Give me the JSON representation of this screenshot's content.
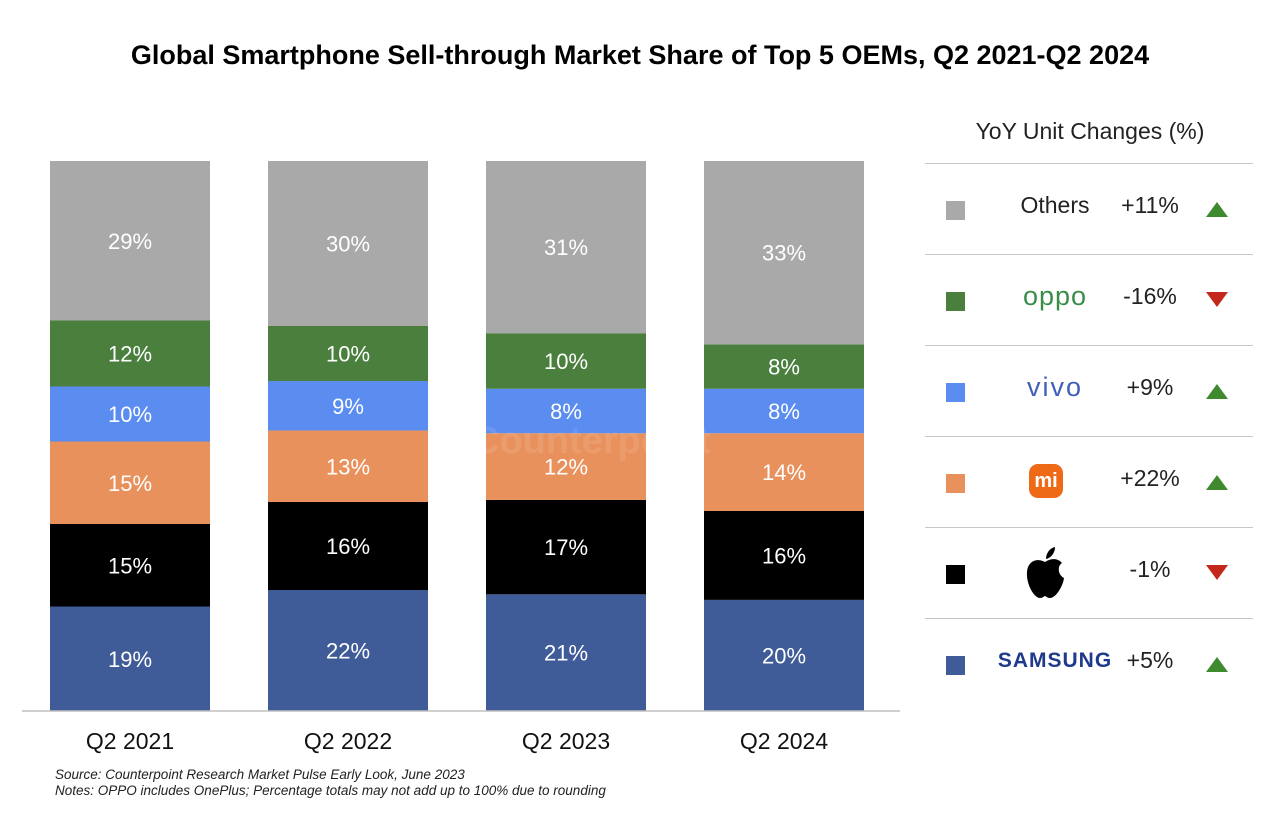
{
  "title": "Global Smartphone Sell-through Market Share of Top 5 OEMs, Q2 2021-Q2 2024",
  "chart_data": {
    "type": "bar",
    "stacked": true,
    "categories": [
      "Q2 2021",
      "Q2 2022",
      "Q2 2023",
      "Q2 2024"
    ],
    "ylim": [
      0,
      100
    ],
    "grid": false,
    "series": [
      {
        "name": "SAMSUNG",
        "color": "#3f5b98",
        "values": [
          19,
          22,
          21,
          20
        ],
        "labels": [
          "19%",
          "22%",
          "21%",
          "20%"
        ]
      },
      {
        "name": "Apple",
        "color": "#000000",
        "values": [
          15,
          16,
          17,
          16
        ],
        "labels": [
          "15%",
          "16%",
          "17%",
          "16%"
        ]
      },
      {
        "name": "mi",
        "color": "#e8915c",
        "values": [
          15,
          13,
          12,
          14
        ],
        "labels": [
          "15%",
          "13%",
          "12%",
          "14%"
        ]
      },
      {
        "name": "vivo",
        "color": "#5b8cf0",
        "values": [
          10,
          9,
          8,
          8
        ],
        "labels": [
          "10%",
          "9%",
          "8%",
          "8%"
        ]
      },
      {
        "name": "oppo",
        "color": "#4a7f3e",
        "values": [
          12,
          10,
          10,
          8
        ],
        "labels": [
          "12%",
          "10%",
          "10%",
          "8%"
        ]
      },
      {
        "name": "Others",
        "color": "#a9a9a9",
        "values": [
          29,
          30,
          31,
          33
        ],
        "labels": [
          "29%",
          "30%",
          "31%",
          "33%"
        ]
      }
    ]
  },
  "legend": {
    "header": "YoY Unit Changes (%)",
    "items": [
      {
        "name": "Others",
        "color": "#a9a9a9",
        "change": "+11%",
        "direction": "up"
      },
      {
        "name": "oppo",
        "color": "#4a7f3e",
        "change": "-16%",
        "direction": "down"
      },
      {
        "name": "vivo",
        "color": "#5b8cf0",
        "change": "+9%",
        "direction": "up"
      },
      {
        "name": "mi",
        "color": "#e8915c",
        "change": "+22%",
        "direction": "up",
        "icon": "xiaomi-logo-icon"
      },
      {
        "name": "Apple",
        "color": "#000000",
        "change": "-1%",
        "direction": "down",
        "icon": "apple-logo-icon"
      },
      {
        "name": "SAMSUNG",
        "color": "#3f5b98",
        "change": "+5%",
        "direction": "up"
      }
    ],
    "up_color": "#3f8a2f",
    "down_color": "#c4281c"
  },
  "watermark": "Counterpoint",
  "notes": {
    "source": "Source: Counterpoint Research Market Pulse Early Look, June 2023",
    "notes": "Notes: OPPO includes OnePlus; Percentage totals may not add up to 100% due to rounding"
  }
}
